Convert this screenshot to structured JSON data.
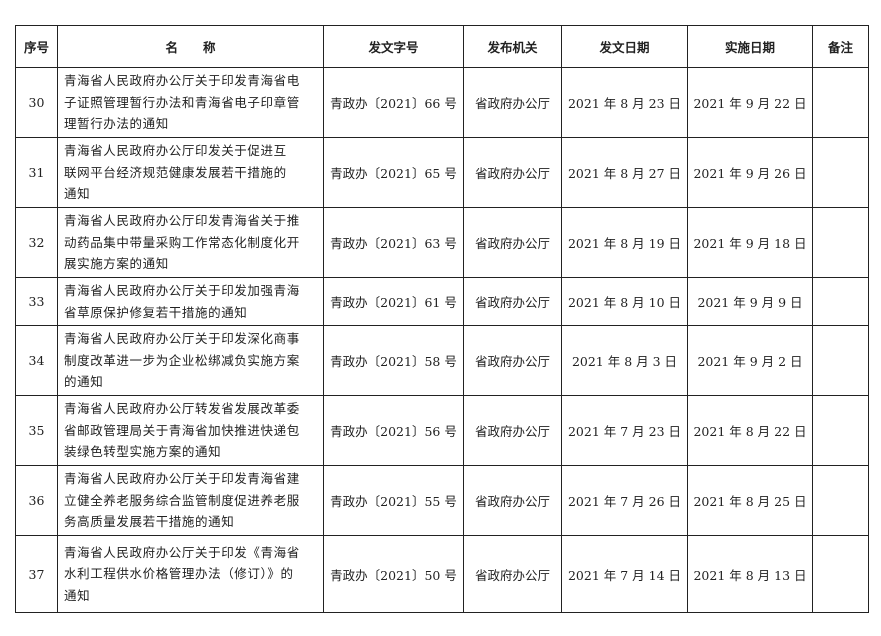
{
  "headers": [
    "序号",
    "名　　称",
    "发文字号",
    "发布机关",
    "发文日期",
    "实施日期",
    "备注"
  ],
  "rows": [
    {
      "no": "30",
      "name_lines": [
        "青海省人民政府办公厅关于印发青海省电",
        "子证照管理暂行办法和青海省电子印章管",
        "理暂行办法的通知"
      ],
      "doc_no": "青政办〔2021〕66 号",
      "issuer": "省政府办公厅",
      "issue_date": "2021 年 8 月 23 日",
      "effective_date": "2021 年 9 月 22 日",
      "note": ""
    },
    {
      "no": "31",
      "name_lines": [
        "青海省人民政府办公厅印发关于促进互",
        "联网平台经济规范健康发展若干措施的",
        "通知"
      ],
      "doc_no": "青政办〔2021〕65 号",
      "issuer": "省政府办公厅",
      "issue_date": "2021 年 8 月 27 日",
      "effective_date": "2021 年 9 月 26 日",
      "note": ""
    },
    {
      "no": "32",
      "name_lines": [
        "青海省人民政府办公厅印发青海省关于推",
        "动药品集中带量采购工作常态化制度化开",
        "展实施方案的通知"
      ],
      "doc_no": "青政办〔2021〕63 号",
      "issuer": "省政府办公厅",
      "issue_date": "2021 年 8 月 19 日",
      "effective_date": "2021 年 9 月 18 日",
      "note": ""
    },
    {
      "no": "33",
      "name_lines": [
        "青海省人民政府办公厅关于印发加强青海",
        "省草原保护修复若干措施的通知"
      ],
      "doc_no": "青政办〔2021〕61 号",
      "issuer": "省政府办公厅",
      "issue_date": "2021 年 8 月 10 日",
      "effective_date": "2021 年 9 月 9 日",
      "note": ""
    },
    {
      "no": "34",
      "name_lines": [
        "青海省人民政府办公厅关于印发深化商事",
        "制度改革进一步为企业松绑减负实施方案",
        "的通知"
      ],
      "doc_no": "青政办〔2021〕58 号",
      "issuer": "省政府办公厅",
      "issue_date": "2021 年 8 月 3 日",
      "effective_date": "2021 年 9 月 2 日",
      "note": ""
    },
    {
      "no": "35",
      "name_lines": [
        "青海省人民政府办公厅转发省发展改革委",
        "省邮政管理局关于青海省加快推进快递包",
        "装绿色转型实施方案的通知"
      ],
      "doc_no": "青政办〔2021〕56 号",
      "issuer": "省政府办公厅",
      "issue_date": "2021 年 7 月 23 日",
      "effective_date": "2021 年 8 月 22 日",
      "note": ""
    },
    {
      "no": "36",
      "name_lines": [
        "青海省人民政府办公厅关于印发青海省建",
        "立健全养老服务综合监管制度促进养老服",
        "务高质量发展若干措施的通知"
      ],
      "doc_no": "青政办〔2021〕55 号",
      "issuer": "省政府办公厅",
      "issue_date": "2021 年 7 月 26 日",
      "effective_date": "2021 年 8 月 25 日",
      "note": ""
    },
    {
      "no": "37",
      "name_lines": [
        "青海省人民政府办公厅关于印发《青海省",
        "水利工程供水价格管理办法（修订）》的",
        "通知"
      ],
      "doc_no": "青政办〔2021〕50 号",
      "issuer": "省政府办公厅",
      "issue_date": "2021 年 7 月 14 日",
      "effective_date": "2021 年 8 月 13 日",
      "note": ""
    }
  ]
}
